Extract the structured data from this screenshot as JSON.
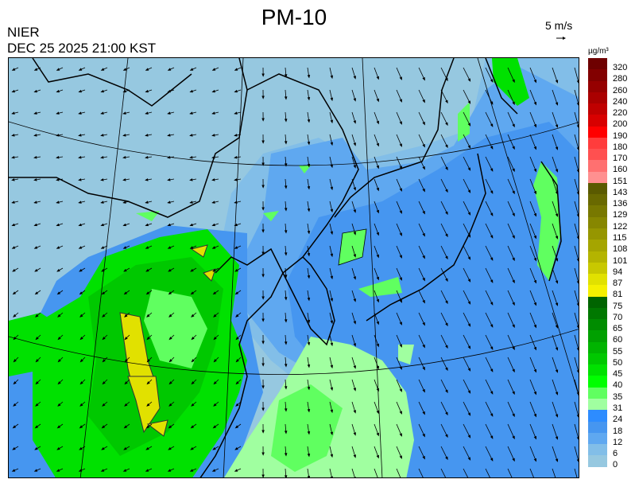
{
  "header": {
    "title": "PM-10",
    "agency": "NIER",
    "datetime": "DEC 25 2025 21:00 KST"
  },
  "wind_reference": {
    "label": "5 m/s",
    "icon": "arrow-right-icon"
  },
  "legend": {
    "unit": "µg/m³",
    "bins": [
      {
        "label": "320",
        "color": "#6e0000"
      },
      {
        "label": "280",
        "color": "#820000"
      },
      {
        "label": "260",
        "color": "#960000"
      },
      {
        "label": "240",
        "color": "#aa0000"
      },
      {
        "label": "220",
        "color": "#c00000"
      },
      {
        "label": "200",
        "color": "#d80000"
      },
      {
        "label": "190",
        "color": "#ff0000"
      },
      {
        "label": "180",
        "color": "#ff3c3c"
      },
      {
        "label": "170",
        "color": "#ff5050"
      },
      {
        "label": "160",
        "color": "#ff7070"
      },
      {
        "label": "151",
        "color": "#ff9090"
      },
      {
        "label": "143",
        "color": "#5a5a00"
      },
      {
        "label": "136",
        "color": "#696900"
      },
      {
        "label": "129",
        "color": "#787800"
      },
      {
        "label": "122",
        "color": "#878700"
      },
      {
        "label": "115",
        "color": "#969600"
      },
      {
        "label": "108",
        "color": "#a5a500"
      },
      {
        "label": "101",
        "color": "#b4b400"
      },
      {
        "label": "94",
        "color": "#c8c800"
      },
      {
        "label": "87",
        "color": "#e1e100"
      },
      {
        "label": "81",
        "color": "#f5f000"
      },
      {
        "label": "75",
        "color": "#006400"
      },
      {
        "label": "70",
        "color": "#007800"
      },
      {
        "label": "65",
        "color": "#008c00"
      },
      {
        "label": "60",
        "color": "#00a000"
      },
      {
        "label": "55",
        "color": "#00b400"
      },
      {
        "label": "50",
        "color": "#00c800"
      },
      {
        "label": "45",
        "color": "#00e100"
      },
      {
        "label": "40",
        "color": "#00ff00"
      },
      {
        "label": "35",
        "color": "#60ff60"
      },
      {
        "label": "31",
        "color": "#a0ffa0"
      },
      {
        "label": "24",
        "color": "#2d8cff"
      },
      {
        "label": "18",
        "color": "#4696f0"
      },
      {
        "label": "12",
        "color": "#5fa8f0"
      },
      {
        "label": "6",
        "color": "#82bee8"
      },
      {
        "label": "0",
        "color": "#96c8e0"
      }
    ]
  }
}
